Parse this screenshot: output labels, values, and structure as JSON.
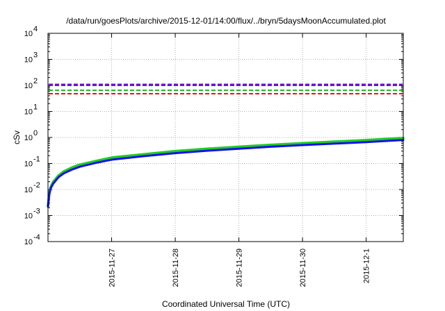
{
  "chart_data": {
    "type": "line",
    "title": "/data/run/goesPlots/archive/2015-12-01/14:00/flux/../bryn/5daysMoonAccumulated.plot",
    "xlabel": "Coordinated Universal Time (UTC)",
    "ylabel": "cSv",
    "y_scale": "log",
    "ylim": [
      0.0001,
      10000
    ],
    "y_ticks": [
      {
        "base": "10",
        "exp": "-4"
      },
      {
        "base": "10",
        "exp": "-3"
      },
      {
        "base": "10",
        "exp": "-2"
      },
      {
        "base": "10",
        "exp": "-1"
      },
      {
        "base": "10",
        "exp": "0"
      },
      {
        "base": "10",
        "exp": "1"
      },
      {
        "base": "10",
        "exp": "2"
      },
      {
        "base": "10",
        "exp": "3"
      },
      {
        "base": "10",
        "exp": "4"
      }
    ],
    "x_unit": "days",
    "xlim": [
      "2015-11-26T00:00",
      "2015-12-01T14:00"
    ],
    "x_ticks": [
      "2015-11-27",
      "2015-11-28",
      "2015-11-29",
      "2015-11-30",
      "2015-12-1"
    ],
    "x_tick_dates": [
      "2015-11-27",
      "2015-11-28",
      "2015-11-29",
      "2015-11-30",
      "2015-12-01"
    ],
    "grid": true,
    "legend": "none",
    "threshold_lines": [
      {
        "value": 110,
        "color": "#8800cc",
        "dash": "dashed"
      },
      {
        "value": 100,
        "color": "#2233ee",
        "dash": "dashed"
      },
      {
        "value": 65,
        "color": "#22bb22",
        "dash": "dashed"
      },
      {
        "value": 48,
        "color": "#ee1111",
        "dash": "dashed"
      }
    ],
    "series": [
      {
        "color": "#22cc22",
        "points": [
          {
            "t": "2015-11-26T00:00",
            "v": 0.0025
          },
          {
            "t": "2015-11-26T00:30",
            "v": 0.0075
          },
          {
            "t": "2015-11-26T01:00",
            "v": 0.0125
          },
          {
            "t": "2015-11-26T02:00",
            "v": 0.02
          },
          {
            "t": "2015-11-26T04:00",
            "v": 0.035
          },
          {
            "t": "2015-11-26T06:00",
            "v": 0.05
          },
          {
            "t": "2015-11-26T09:00",
            "v": 0.07
          },
          {
            "t": "2015-11-26T12:00",
            "v": 0.09
          },
          {
            "t": "2015-11-26T18:00",
            "v": 0.125
          },
          {
            "t": "2015-11-27T00:00",
            "v": 0.17
          },
          {
            "t": "2015-11-27T12:00",
            "v": 0.225
          },
          {
            "t": "2015-11-28T00:00",
            "v": 0.3
          },
          {
            "t": "2015-11-28T12:00",
            "v": 0.37
          },
          {
            "t": "2015-11-29T00:00",
            "v": 0.44
          },
          {
            "t": "2015-11-29T12:00",
            "v": 0.52
          },
          {
            "t": "2015-11-30T00:00",
            "v": 0.6
          },
          {
            "t": "2015-11-30T12:00",
            "v": 0.69
          },
          {
            "t": "2015-12-01T00:00",
            "v": 0.79
          },
          {
            "t": "2015-12-01T14:00",
            "v": 0.95
          }
        ]
      },
      {
        "color": "#1111ee",
        "points": [
          {
            "t": "2015-11-26T00:00",
            "v": 0.0022
          },
          {
            "t": "2015-11-26T00:30",
            "v": 0.0065
          },
          {
            "t": "2015-11-26T01:00",
            "v": 0.011
          },
          {
            "t": "2015-11-26T02:00",
            "v": 0.017
          },
          {
            "t": "2015-11-26T04:00",
            "v": 0.03
          },
          {
            "t": "2015-11-26T06:00",
            "v": 0.042
          },
          {
            "t": "2015-11-26T09:00",
            "v": 0.058
          },
          {
            "t": "2015-11-26T12:00",
            "v": 0.075
          },
          {
            "t": "2015-11-26T18:00",
            "v": 0.105
          },
          {
            "t": "2015-11-27T00:00",
            "v": 0.14
          },
          {
            "t": "2015-11-27T12:00",
            "v": 0.19
          },
          {
            "t": "2015-11-28T00:00",
            "v": 0.25
          },
          {
            "t": "2015-11-28T12:00",
            "v": 0.31
          },
          {
            "t": "2015-11-29T00:00",
            "v": 0.37
          },
          {
            "t": "2015-11-29T12:00",
            "v": 0.44
          },
          {
            "t": "2015-11-30T00:00",
            "v": 0.51
          },
          {
            "t": "2015-11-30T12:00",
            "v": 0.58
          },
          {
            "t": "2015-12-01T00:00",
            "v": 0.66
          },
          {
            "t": "2015-12-01T14:00",
            "v": 0.8
          }
        ]
      }
    ]
  }
}
